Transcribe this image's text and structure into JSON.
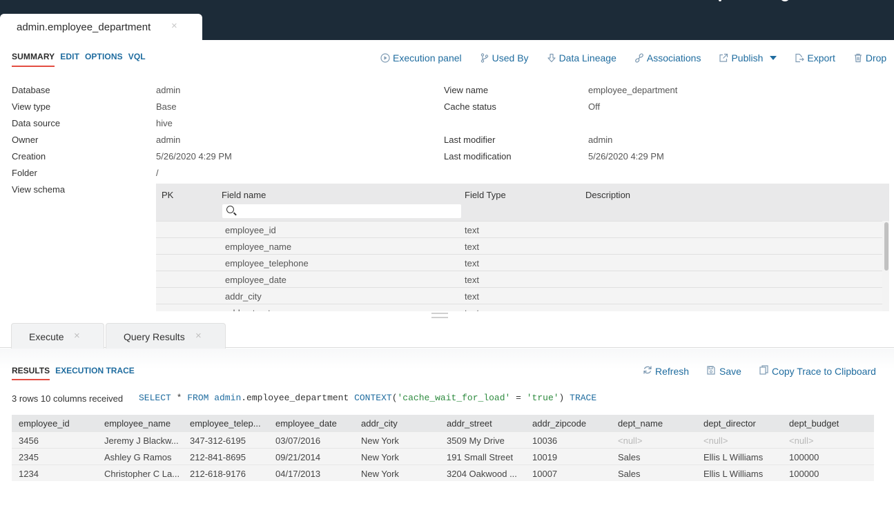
{
  "document_tab": {
    "title": "admin.employee_department",
    "close": "×"
  },
  "subtabs": [
    "SUMMARY",
    "EDIT",
    "OPTIONS",
    "VQL"
  ],
  "toolbar": {
    "execution_panel": "Execution panel",
    "used_by": "Used By",
    "data_lineage": "Data Lineage",
    "associations": "Associations",
    "publish": "Publish",
    "export": "Export",
    "drop": "Drop"
  },
  "properties": {
    "database_label": "Database",
    "database_value": "admin",
    "view_type_label": "View type",
    "view_type_value": "Base",
    "data_source_label": "Data source",
    "data_source_value": "hive",
    "owner_label": "Owner",
    "owner_value": "admin",
    "creation_label": "Creation",
    "creation_value": "5/26/2020 4:29 PM",
    "folder_label": "Folder",
    "folder_value": "/",
    "view_schema_label": "View schema",
    "view_name_label": "View name",
    "view_name_value": "employee_department",
    "cache_status_label": "Cache status",
    "cache_status_value": "Off",
    "last_modifier_label": "Last modifier",
    "last_modifier_value": "admin",
    "last_modification_label": "Last modification",
    "last_modification_value": "5/26/2020 4:29 PM"
  },
  "schema": {
    "headers": {
      "pk": "PK",
      "field_name": "Field name",
      "field_type": "Field Type",
      "description": "Description"
    },
    "search_value": "",
    "rows": [
      {
        "name": "employee_id",
        "type": "text"
      },
      {
        "name": "employee_name",
        "type": "text"
      },
      {
        "name": "employee_telephone",
        "type": "text"
      },
      {
        "name": "employee_date",
        "type": "text"
      },
      {
        "name": "addr_city",
        "type": "text"
      },
      {
        "name": "addr_street",
        "type": "text"
      }
    ]
  },
  "lower_tabs": {
    "execute": "Execute",
    "query_results": "Query Results",
    "close": "×"
  },
  "result_subtabs": [
    "RESULTS",
    "EXECUTION TRACE"
  ],
  "result_toolbar": {
    "refresh": "Refresh",
    "save": "Save",
    "copy_trace": "Copy Trace to Clipboard"
  },
  "rows_info": "3 rows 10 columns received",
  "query": {
    "select": "SELECT",
    "star": " * ",
    "from": "FROM",
    "db": " admin",
    "rest": ".employee_department ",
    "context": "CONTEXT",
    "open": "(",
    "key": "'cache_wait_for_load'",
    "eq": " = ",
    "val": "'true'",
    "close": ") ",
    "trace": "TRACE"
  },
  "results": {
    "columns": [
      "employee_id",
      "employee_name",
      "employee_telep...",
      "employee_date",
      "addr_city",
      "addr_street",
      "addr_zipcode",
      "dept_name",
      "dept_director",
      "dept_budget"
    ],
    "rows": [
      [
        "3456",
        "Jeremy J Blackw...",
        "347-312-6195",
        "03/07/2016",
        "New York",
        "3509 My Drive",
        "10036",
        "<null>",
        "<null>",
        "<null>"
      ],
      [
        "2345",
        "Ashley G Ramos",
        "212-841-8695",
        "09/21/2014",
        "New York",
        "191 Small Street",
        "10019",
        "Sales",
        "Ellis L Williams",
        "100000"
      ],
      [
        "1234",
        "Christopher C La...",
        "212-618-9176",
        "04/17/2013",
        "New York",
        "3204 Oakwood ...",
        "10007",
        "Sales",
        "Ellis L Williams",
        "100000"
      ]
    ]
  },
  "colors": {
    "topbar": "#1c2b38",
    "link": "#1f6c9f",
    "active_underline": "#e34d41"
  }
}
